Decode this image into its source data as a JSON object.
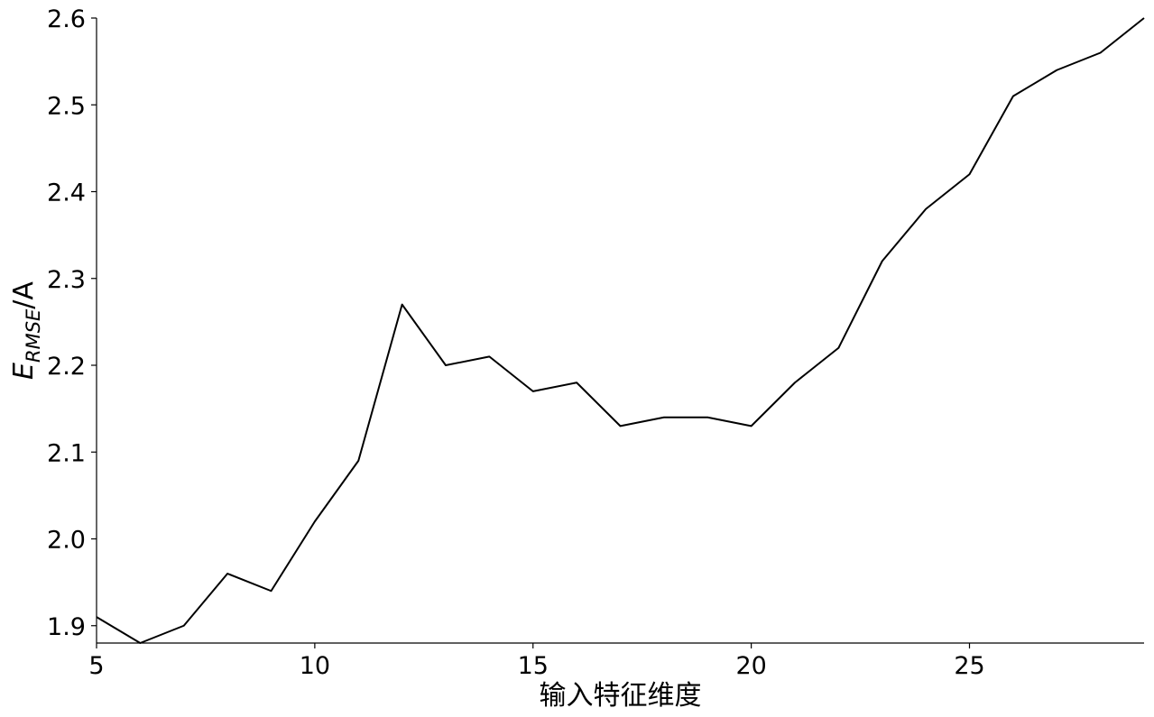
{
  "chart_data": {
    "type": "line",
    "title": "",
    "xlabel": "输入特征维度",
    "ylabel": {
      "main": "E",
      "subscript": "RMSE",
      "unit": "/A"
    },
    "xlim": [
      5,
      29
    ],
    "ylim": [
      1.88,
      2.6
    ],
    "xticks": [
      5,
      10,
      15,
      20,
      25
    ],
    "yticks": [
      1.9,
      2.0,
      2.1,
      2.2,
      2.3,
      2.4,
      2.5,
      2.6
    ],
    "ytick_labels": [
      "1.9",
      "2.0",
      "2.1",
      "2.2",
      "2.3",
      "2.4",
      "2.5",
      "2.6"
    ],
    "grid": false,
    "line_color": "#000000",
    "series": [
      {
        "x": [
          5,
          6,
          7,
          8,
          9,
          10,
          11,
          12,
          13,
          14,
          15,
          16,
          17,
          18,
          19,
          20,
          21,
          22,
          23,
          24,
          25,
          26,
          27,
          28,
          29
        ],
        "values": [
          1.91,
          1.88,
          1.9,
          1.96,
          1.94,
          2.02,
          2.09,
          2.27,
          2.2,
          2.21,
          2.17,
          2.18,
          2.13,
          2.14,
          2.14,
          2.13,
          2.18,
          2.22,
          2.32,
          2.38,
          2.42,
          2.51,
          2.54,
          2.56,
          2.6
        ]
      }
    ]
  }
}
